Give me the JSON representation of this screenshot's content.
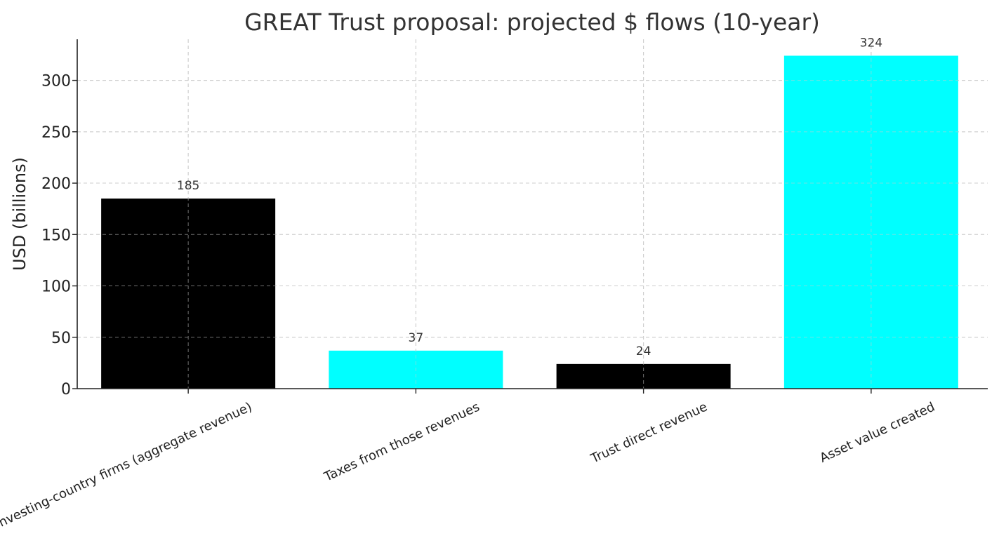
{
  "chart_data": {
    "type": "bar",
    "title": "GREAT Trust proposal: projected $ flows (10-year)",
    "xlabel": "",
    "ylabel": "USD (billions)",
    "categories": [
      "Investing-country firms (aggregate revenue)",
      "Taxes from those revenues",
      "Trust direct revenue",
      "Asset value created"
    ],
    "values": [
      185,
      37,
      24,
      324
    ],
    "data_labels": [
      "185",
      "37",
      "24",
      "324"
    ],
    "bar_colors": [
      "#000000",
      "#00ffff",
      "#000000",
      "#00ffff"
    ],
    "yticks": [
      0,
      50,
      100,
      150,
      200,
      250,
      300
    ],
    "ytick_labels": [
      "0",
      "50",
      "100",
      "150",
      "200",
      "250",
      "300"
    ],
    "ylim": [
      0,
      340
    ],
    "grid": true,
    "legend": false
  }
}
